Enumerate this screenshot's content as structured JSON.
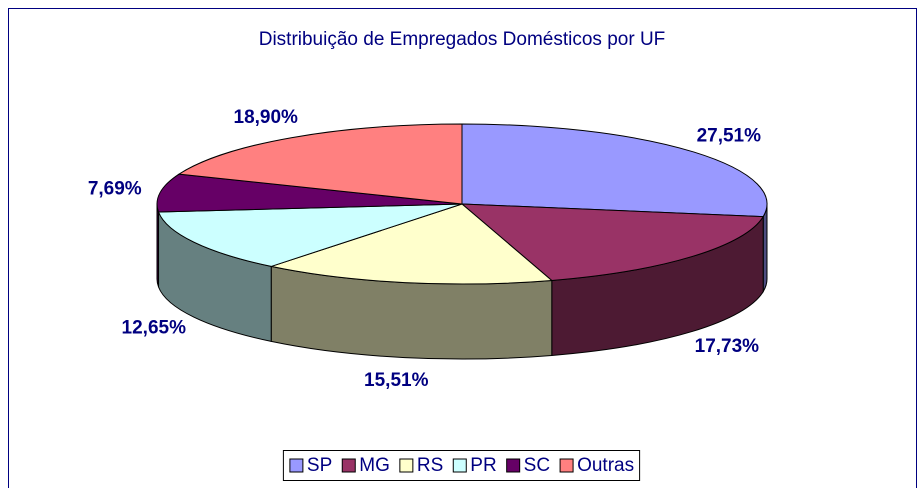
{
  "chart_data": {
    "type": "pie3d",
    "title": "Distribuição de Empregados Domésticos por UF",
    "categories": [
      "SP",
      "MG",
      "RS",
      "PR",
      "SC",
      "Outras"
    ],
    "values": [
      27.51,
      17.73,
      15.51,
      12.65,
      7.69,
      18.9
    ],
    "value_labels": [
      "27,51%",
      "17,73%",
      "15,51%",
      "12,65%",
      "7,69%",
      "18,90%"
    ],
    "colors": [
      "#9999ff",
      "#993366",
      "#ffffcc",
      "#ccffff",
      "#660066",
      "#ff8080"
    ],
    "legend": "bottom"
  }
}
